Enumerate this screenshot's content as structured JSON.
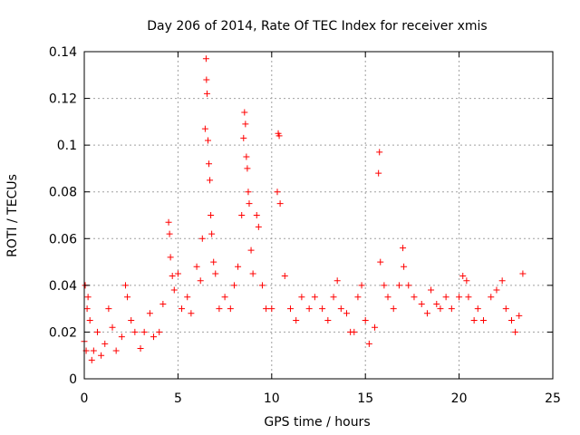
{
  "chart_data": {
    "type": "scatter",
    "title": "Day 206 of 2014, Rate Of TEC Index for receiver xmis",
    "xlabel": "GPS time / hours",
    "ylabel": "ROTI / TECUs",
    "xlim": [
      0,
      25
    ],
    "ylim": [
      0,
      0.14
    ],
    "xticks": [
      0,
      5,
      10,
      15,
      20,
      25
    ],
    "xtick_labels": [
      "0",
      "5",
      "10",
      "15",
      "20",
      "25"
    ],
    "yticks": [
      0,
      0.02,
      0.04,
      0.06,
      0.08,
      0.1,
      0.12,
      0.14
    ],
    "ytick_labels": [
      "0",
      "0.02",
      "0.04",
      "0.06",
      "0.08",
      "0.1",
      "0.12",
      "0.14"
    ],
    "grid": true,
    "marker": "plus",
    "color": "#ff0000",
    "series": [
      {
        "points": [
          [
            0.0,
            0.016
          ],
          [
            0.05,
            0.04
          ],
          [
            0.1,
            0.012
          ],
          [
            0.15,
            0.03
          ],
          [
            0.2,
            0.035
          ],
          [
            0.3,
            0.025
          ],
          [
            0.4,
            0.008
          ],
          [
            0.5,
            0.012
          ],
          [
            0.7,
            0.02
          ],
          [
            0.9,
            0.01
          ],
          [
            1.1,
            0.015
          ],
          [
            1.3,
            0.03
          ],
          [
            1.5,
            0.022
          ],
          [
            1.7,
            0.012
          ],
          [
            2.0,
            0.018
          ],
          [
            2.2,
            0.04
          ],
          [
            2.3,
            0.035
          ],
          [
            2.5,
            0.025
          ],
          [
            2.7,
            0.02
          ],
          [
            3.0,
            0.013
          ],
          [
            3.2,
            0.02
          ],
          [
            3.5,
            0.028
          ],
          [
            3.7,
            0.018
          ],
          [
            4.0,
            0.02
          ],
          [
            4.2,
            0.032
          ],
          [
            4.5,
            0.067
          ],
          [
            4.55,
            0.062
          ],
          [
            4.6,
            0.052
          ],
          [
            4.7,
            0.044
          ],
          [
            4.8,
            0.038
          ],
          [
            5.0,
            0.045
          ],
          [
            5.2,
            0.03
          ],
          [
            5.5,
            0.035
          ],
          [
            5.7,
            0.028
          ],
          [
            6.0,
            0.048
          ],
          [
            6.2,
            0.042
          ],
          [
            6.3,
            0.06
          ],
          [
            6.45,
            0.107
          ],
          [
            6.5,
            0.137
          ],
          [
            6.52,
            0.128
          ],
          [
            6.55,
            0.122
          ],
          [
            6.6,
            0.102
          ],
          [
            6.65,
            0.092
          ],
          [
            6.7,
            0.085
          ],
          [
            6.75,
            0.07
          ],
          [
            6.8,
            0.062
          ],
          [
            6.9,
            0.05
          ],
          [
            7.0,
            0.045
          ],
          [
            7.2,
            0.03
          ],
          [
            7.5,
            0.035
          ],
          [
            7.8,
            0.03
          ],
          [
            8.0,
            0.04
          ],
          [
            8.2,
            0.048
          ],
          [
            8.4,
            0.07
          ],
          [
            8.5,
            0.103
          ],
          [
            8.55,
            0.114
          ],
          [
            8.6,
            0.109
          ],
          [
            8.65,
            0.095
          ],
          [
            8.7,
            0.09
          ],
          [
            8.75,
            0.08
          ],
          [
            8.8,
            0.075
          ],
          [
            8.9,
            0.055
          ],
          [
            9.0,
            0.045
          ],
          [
            9.2,
            0.07
          ],
          [
            9.3,
            0.065
          ],
          [
            9.5,
            0.04
          ],
          [
            9.7,
            0.03
          ],
          [
            10.0,
            0.03
          ],
          [
            10.3,
            0.08
          ],
          [
            10.35,
            0.105
          ],
          [
            10.4,
            0.104
          ],
          [
            10.45,
            0.075
          ],
          [
            10.7,
            0.044
          ],
          [
            11.0,
            0.03
          ],
          [
            11.3,
            0.025
          ],
          [
            11.6,
            0.035
          ],
          [
            12.0,
            0.03
          ],
          [
            12.3,
            0.035
          ],
          [
            12.7,
            0.03
          ],
          [
            13.0,
            0.025
          ],
          [
            13.3,
            0.035
          ],
          [
            13.5,
            0.042
          ],
          [
            13.7,
            0.03
          ],
          [
            14.0,
            0.028
          ],
          [
            14.2,
            0.02
          ],
          [
            14.4,
            0.02
          ],
          [
            14.6,
            0.035
          ],
          [
            14.8,
            0.04
          ],
          [
            15.0,
            0.025
          ],
          [
            15.2,
            0.015
          ],
          [
            15.5,
            0.022
          ],
          [
            15.7,
            0.088
          ],
          [
            15.75,
            0.097
          ],
          [
            15.8,
            0.05
          ],
          [
            16.0,
            0.04
          ],
          [
            16.2,
            0.035
          ],
          [
            16.5,
            0.03
          ],
          [
            16.8,
            0.04
          ],
          [
            17.0,
            0.056
          ],
          [
            17.05,
            0.048
          ],
          [
            17.3,
            0.04
          ],
          [
            17.6,
            0.035
          ],
          [
            18.0,
            0.032
          ],
          [
            18.3,
            0.028
          ],
          [
            18.5,
            0.038
          ],
          [
            18.8,
            0.032
          ],
          [
            19.0,
            0.03
          ],
          [
            19.3,
            0.035
          ],
          [
            19.6,
            0.03
          ],
          [
            20.0,
            0.035
          ],
          [
            20.2,
            0.044
          ],
          [
            20.4,
            0.042
          ],
          [
            20.5,
            0.035
          ],
          [
            20.8,
            0.025
          ],
          [
            21.0,
            0.03
          ],
          [
            21.3,
            0.025
          ],
          [
            21.7,
            0.035
          ],
          [
            22.0,
            0.038
          ],
          [
            22.3,
            0.042
          ],
          [
            22.5,
            0.03
          ],
          [
            22.8,
            0.025
          ],
          [
            23.0,
            0.02
          ],
          [
            23.2,
            0.027
          ],
          [
            23.4,
            0.045
          ]
        ]
      }
    ]
  }
}
